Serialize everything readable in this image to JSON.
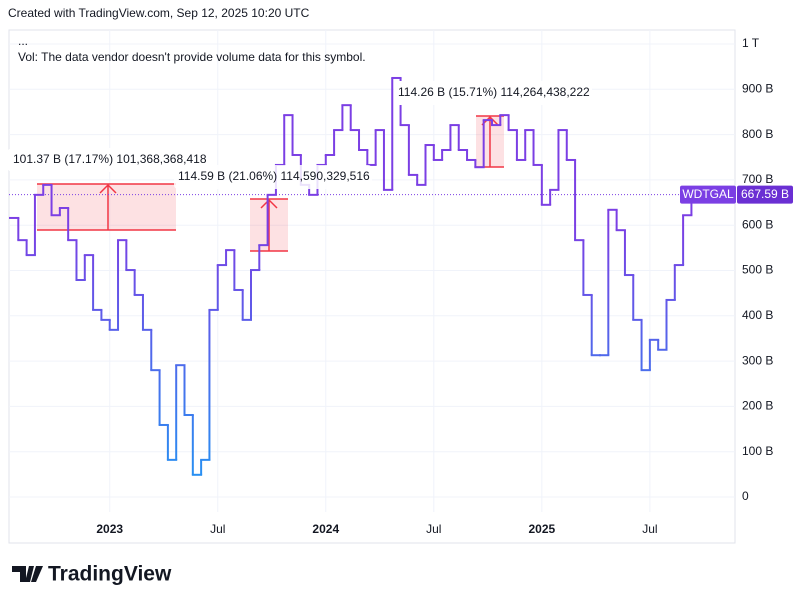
{
  "header": {
    "created": "Created with TradingView.com, Sep 12, 2025 10:20 UTC",
    "menu": "...",
    "volume_note": "Vol: The data vendor doesn't provide volume data for this symbol."
  },
  "footer": {
    "logo": "TradingView"
  },
  "chart_data": {
    "type": "line",
    "step": true,
    "categories": [
      null,
      null,
      null,
      null,
      null,
      null,
      null,
      null,
      null,
      null,
      null,
      null,
      "2023",
      null,
      null,
      null,
      null,
      null,
      null,
      null,
      null,
      null,
      null,
      null,
      null,
      "Jul",
      null,
      null,
      null,
      null,
      null,
      null,
      null,
      null,
      null,
      null,
      null,
      null,
      "2024",
      null,
      null,
      null,
      null,
      null,
      null,
      null,
      null,
      null,
      null,
      null,
      null,
      "Jul",
      null,
      null,
      null,
      null,
      null,
      null,
      null,
      null,
      null,
      null,
      null,
      null,
      "2025",
      null,
      null,
      null,
      null,
      null,
      null,
      null,
      null,
      null,
      null,
      null,
      null,
      "Jul",
      null,
      null,
      null,
      null,
      null,
      null,
      null,
      null,
      null,
      null
    ],
    "series": [
      {
        "name": "WDTGAL",
        "color": "#7b3fe4",
        "color_low": "#2196f3",
        "values": [
          616,
          567,
          534,
          667,
          689,
          622,
          638,
          567,
          479,
          534,
          413,
          391,
          369,
          567,
          501,
          446,
          369,
          280,
          159,
          82,
          291,
          181,
          49,
          82,
          413,
          512,
          545,
          457,
          391,
          501,
          556,
          667,
          733,
          843,
          755,
          689,
          667,
          733,
          755,
          810,
          865,
          810,
          766,
          733,
          810,
          678,
          925,
          821,
          711,
          689,
          777,
          744,
          766,
          821,
          766,
          744,
          728,
          832,
          821,
          843,
          810,
          744,
          810,
          733,
          645,
          678,
          810,
          744,
          567,
          446,
          313,
          313,
          634,
          589,
          490,
          391,
          280,
          347,
          325,
          435,
          512,
          622,
          667.59,
          null,
          null,
          null,
          null,
          null
        ]
      }
    ],
    "last_value": {
      "name": "WDTGAL",
      "value": 667.59,
      "label": "667.59 B"
    },
    "ylim": [
      0,
      1000
    ],
    "yticks": [
      0,
      {
        "value": 100,
        "label": "100 B"
      },
      {
        "value": 200,
        "label": "200 B"
      },
      {
        "value": 300,
        "label": "300 B"
      },
      {
        "value": 400,
        "label": "400 B"
      },
      {
        "value": 500,
        "label": "500 B"
      },
      {
        "value": 600,
        "label": "600 B"
      },
      {
        "value": 700,
        "label": "700 B"
      },
      {
        "value": 800,
        "label": "800 B"
      },
      {
        "value": 900,
        "label": "900 B"
      },
      {
        "value": 1000,
        "label": "1 T"
      }
    ],
    "grid": true,
    "annotations": [
      "101.37 B (17.17%) 101,368,368,418",
      "114.59 B (21.06%) 114,590,329,516",
      "114.26 B (15.71%) 114,264,438,222"
    ]
  }
}
